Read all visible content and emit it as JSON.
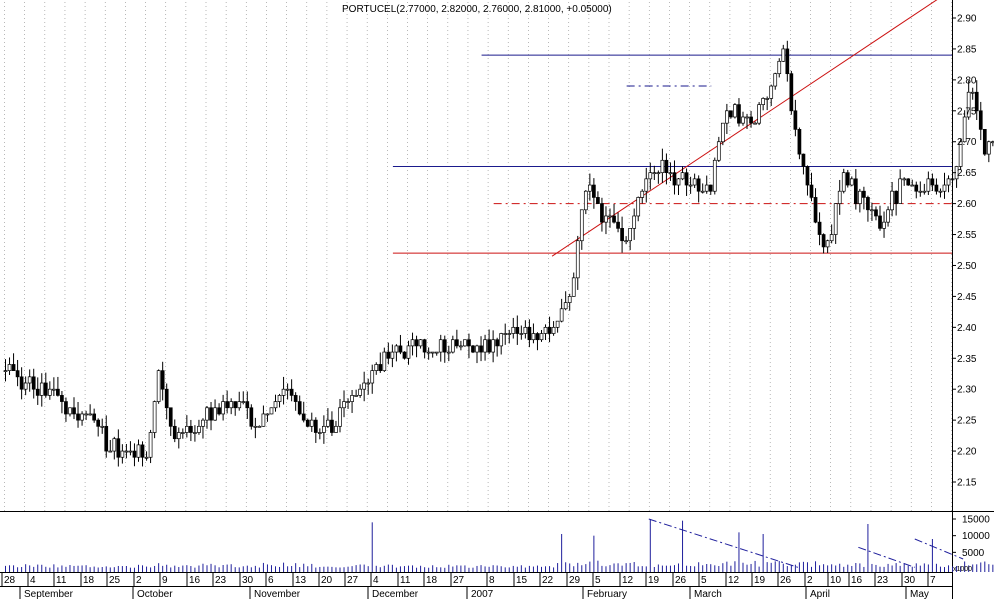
{
  "chart_data": [
    {
      "type": "ohlc",
      "title": "PORTUCEL(2.77000, 2.82000, 2.76000, 2.81000, +0.05000)",
      "ylim": [
        2.11,
        2.93
      ],
      "price_ticks": [
        "2.15",
        "2.20",
        "2.25",
        "2.30",
        "2.35",
        "2.40",
        "2.45",
        "2.50",
        "2.55",
        "2.60",
        "2.65",
        "2.70",
        "2.75",
        "2.80",
        "2.85",
        "2.90"
      ],
      "grid": "vertical dotted weekly",
      "colors": {
        "up_bar": "#ffffff",
        "down_bar": "#000000",
        "blue_line": "#1a1a8c",
        "red_line": "#cc1111"
      },
      "horizontal_lines": [
        {
          "from": "Feb 9",
          "to": "end",
          "y": 2.84,
          "style": "solid",
          "color": "blue"
        },
        {
          "from": "Jan 10",
          "to": "end",
          "y": 2.66,
          "style": "solid",
          "color": "blue"
        },
        {
          "from": "Jan 10",
          "to": "end",
          "y": 2.52,
          "style": "solid",
          "color": "red"
        },
        {
          "from": "Feb 14",
          "to": "end",
          "y": 2.6,
          "style": "dashed",
          "color": "red"
        },
        {
          "from": "Apr 2",
          "to": "Apr 28",
          "y": 2.79,
          "style": "dashed",
          "color": "blue"
        }
      ],
      "trend_lines": [
        {
          "from": [
            "Mar 6",
            2.515
          ],
          "to": [
            "end",
            2.81
          ],
          "color": "red"
        }
      ],
      "segments": [
        {
          "start": 2.33,
          "end": 2.3,
          "n": 10,
          "vol": 9
        },
        {
          "start": 2.3,
          "end": 2.26,
          "n": 10,
          "vol": 9
        },
        {
          "start": 2.26,
          "end": 2.19,
          "n": 10,
          "vol": 8
        },
        {
          "start": 2.19,
          "end": 2.2,
          "n": 6,
          "vol": 8
        },
        {
          "start": 2.2,
          "end": 2.33,
          "n": 3,
          "vol": 11
        },
        {
          "start": 2.33,
          "end": 2.21,
          "n": 4,
          "vol": 11
        },
        {
          "start": 2.21,
          "end": 2.27,
          "n": 10,
          "vol": 10
        },
        {
          "start": 2.27,
          "end": 2.28,
          "n": 6,
          "vol": 10
        },
        {
          "start": 2.28,
          "end": 2.23,
          "n": 5,
          "vol": 10
        },
        {
          "start": 2.23,
          "end": 2.31,
          "n": 6,
          "vol": 12
        },
        {
          "start": 2.31,
          "end": 2.24,
          "n": 6,
          "vol": 12
        },
        {
          "start": 2.24,
          "end": 2.24,
          "n": 6,
          "vol": 10
        },
        {
          "start": 2.24,
          "end": 2.34,
          "n": 12,
          "vol": 11
        },
        {
          "start": 2.34,
          "end": 2.37,
          "n": 8,
          "vol": 9
        },
        {
          "start": 2.37,
          "end": 2.37,
          "n": 15,
          "vol": 9
        },
        {
          "start": 2.37,
          "end": 2.4,
          "n": 20,
          "vol": 9
        },
        {
          "start": 2.4,
          "end": 2.44,
          "n": 4,
          "vol": 14
        },
        {
          "start": 2.44,
          "end": 2.62,
          "n": 4,
          "vol": 16
        },
        {
          "start": 2.62,
          "end": 2.54,
          "n": 10,
          "vol": 16
        },
        {
          "start": 2.54,
          "end": 2.66,
          "n": 7,
          "vol": 14
        },
        {
          "start": 2.66,
          "end": 2.62,
          "n": 14,
          "vol": 13
        },
        {
          "start": 2.62,
          "end": 2.76,
          "n": 4,
          "vol": 16
        },
        {
          "start": 2.76,
          "end": 2.73,
          "n": 6,
          "vol": 16
        },
        {
          "start": 2.73,
          "end": 2.79,
          "n": 5,
          "vol": 16
        },
        {
          "start": 2.79,
          "end": 2.84,
          "n": 3,
          "vol": 16
        },
        {
          "start": 2.84,
          "end": 2.62,
          "n": 6,
          "vol": 15
        },
        {
          "start": 2.62,
          "end": 2.52,
          "n": 4,
          "vol": 15
        },
        {
          "start": 2.52,
          "end": 2.64,
          "n": 5,
          "vol": 12
        },
        {
          "start": 2.64,
          "end": 2.6,
          "n": 5,
          "vol": 12
        },
        {
          "start": 2.6,
          "end": 2.56,
          "n": 4,
          "vol": 10
        },
        {
          "start": 2.56,
          "end": 2.63,
          "n": 5,
          "vol": 12
        },
        {
          "start": 2.63,
          "end": 2.62,
          "n": 10,
          "vol": 11
        },
        {
          "start": 2.62,
          "end": 2.66,
          "n": 4,
          "vol": 12
        },
        {
          "start": 2.66,
          "end": 2.79,
          "n": 3,
          "vol": 16
        },
        {
          "start": 2.79,
          "end": 2.69,
          "n": 4,
          "vol": 15
        },
        {
          "start": 2.69,
          "end": 2.72,
          "n": 6,
          "vol": 11
        },
        {
          "start": 2.72,
          "end": 2.8,
          "n": 6,
          "vol": 13
        },
        {
          "start": 2.8,
          "end": 2.81,
          "n": 3,
          "vol": 13
        }
      ],
      "volume_spikes": [
        {
          "index": 91,
          "value": 14000
        },
        {
          "index": 138,
          "value": 10500
        },
        {
          "index": 146,
          "value": 10000
        },
        {
          "index": 160,
          "value": 15000
        },
        {
          "index": 168,
          "value": 14500
        },
        {
          "index": 182,
          "value": 11000
        },
        {
          "index": 188,
          "value": 10500
        },
        {
          "index": 214,
          "value": 13500
        },
        {
          "index": 230,
          "value": 9000
        }
      ],
      "volume_trend_lines": [
        {
          "from": [
            160,
            15000
          ],
          "to": [
            197,
            500
          ]
        },
        {
          "from": [
            212,
            6500
          ],
          "to": [
            226,
            500
          ]
        },
        {
          "from": [
            226,
            9000
          ],
          "to": [
            238,
            3000
          ]
        }
      ],
      "volume_ticks": [
        "15000",
        "10000",
        "5000"
      ],
      "volume_unit": "x1000",
      "vlim": [
        0,
        16500
      ],
      "x_tick_labels": [
        "28",
        "4",
        "11",
        "18",
        "25",
        "2",
        "9",
        "16",
        "23",
        "30",
        "6",
        "13",
        "20",
        "27",
        "4",
        "11",
        "18",
        "27",
        "8",
        "15",
        "22",
        "29",
        "5",
        "12",
        "19",
        "26",
        "5",
        "12",
        "19",
        "26",
        "2",
        "10",
        "16",
        "23",
        "30",
        "7"
      ],
      "month_labels": [
        "September",
        "October",
        "November",
        "December",
        "2007",
        "February",
        "March",
        "April",
        "May"
      ]
    }
  ]
}
